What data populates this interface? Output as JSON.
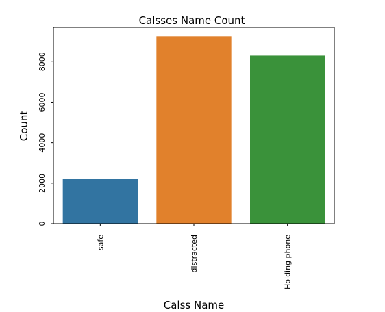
{
  "chart_data": {
    "type": "bar",
    "title": "Calsses Name Count",
    "xlabel": "Calss Name",
    "ylabel": "Count",
    "categories": [
      "safe",
      "distracted",
      "Holding phone"
    ],
    "values": [
      2200,
      9250,
      8300
    ],
    "colors": [
      "#3274a1",
      "#e1812c",
      "#3a923a"
    ],
    "ylim": [
      0,
      9700
    ],
    "yticks": [
      0,
      2000,
      4000,
      6000,
      8000
    ],
    "grid": false,
    "legend": "none"
  }
}
